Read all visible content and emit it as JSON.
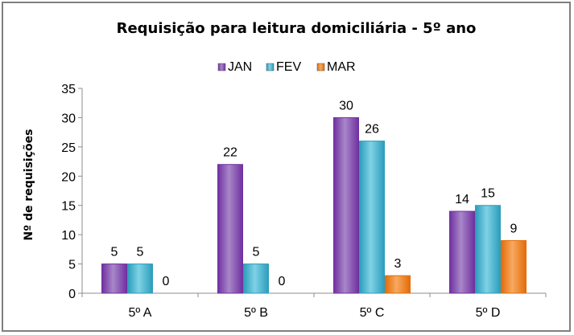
{
  "chart_data": {
    "type": "bar",
    "title": "Requisição para leitura domiciliária  - 5º ano",
    "xlabel": "",
    "ylabel": "Nº de requisições",
    "categories": [
      "5º A",
      "5º B",
      "5º C",
      "5º D"
    ],
    "series": [
      {
        "name": "JAN",
        "values": [
          5,
          22,
          30,
          14
        ],
        "color": "#7030a0",
        "color_light": "#a887c9"
      },
      {
        "name": "FEV",
        "values": [
          5,
          5,
          26,
          15
        ],
        "color": "#2b9dbb",
        "color_light": "#7fd2e6"
      },
      {
        "name": "MAR",
        "values": [
          0,
          0,
          3,
          9
        ],
        "color": "#e36c09",
        "color_light": "#f7a95f"
      }
    ],
    "ylim": [
      0,
      35
    ],
    "yticks": [
      0,
      5,
      10,
      15,
      20,
      25,
      30,
      35
    ],
    "legend": "top",
    "grid": false
  }
}
